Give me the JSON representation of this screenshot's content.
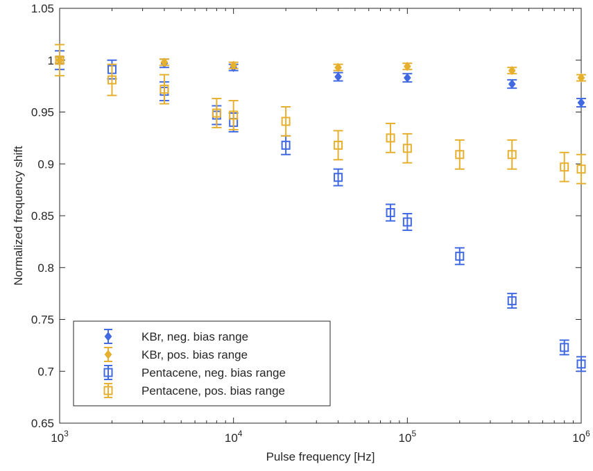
{
  "chart_data": {
    "type": "scatter",
    "xlabel": "Pulse frequency [Hz]",
    "ylabel": "Normalized frequency shift",
    "xscale": "log",
    "xlim": [
      1000,
      1000000
    ],
    "ylim": [
      0.65,
      1.05
    ],
    "x_ticks": [
      {
        "value": 1000,
        "base": "10",
        "exp": "3"
      },
      {
        "value": 10000,
        "base": "10",
        "exp": "4"
      },
      {
        "value": 100000,
        "base": "10",
        "exp": "5"
      },
      {
        "value": 1000000,
        "base": "10",
        "exp": "6"
      }
    ],
    "y_ticks": [
      {
        "value": 0.65,
        "label": "0.65"
      },
      {
        "value": 0.7,
        "label": "0.7"
      },
      {
        "value": 0.75,
        "label": "0.75"
      },
      {
        "value": 0.8,
        "label": "0.8"
      },
      {
        "value": 0.85,
        "label": "0.85"
      },
      {
        "value": 0.9,
        "label": "0.9"
      },
      {
        "value": 0.95,
        "label": "0.95"
      },
      {
        "value": 1.0,
        "label": "1"
      },
      {
        "value": 1.05,
        "label": "1.05"
      }
    ],
    "grid": false,
    "legend_position": "bottom-left",
    "series": [
      {
        "name": "KBr, neg. bias range",
        "marker": "diamond",
        "filled": true,
        "color": "#4169E1",
        "points": [
          {
            "x": 1000,
            "y": 1.0,
            "err": 0.003
          },
          {
            "x": 4000,
            "y": 0.997,
            "err": 0.004
          },
          {
            "x": 10000,
            "y": 0.993,
            "err": 0.003
          },
          {
            "x": 40000,
            "y": 0.984,
            "err": 0.004
          },
          {
            "x": 100000,
            "y": 0.983,
            "err": 0.004
          },
          {
            "x": 400000,
            "y": 0.977,
            "err": 0.004
          },
          {
            "x": 1000000,
            "y": 0.959,
            "err": 0.004
          }
        ]
      },
      {
        "name": "KBr, pos. bias range",
        "marker": "diamond",
        "filled": true,
        "color": "#E6B02E",
        "points": [
          {
            "x": 1000,
            "y": 1.0,
            "err": 0.003
          },
          {
            "x": 4000,
            "y": 0.998,
            "err": 0.003
          },
          {
            "x": 10000,
            "y": 0.995,
            "err": 0.003
          },
          {
            "x": 40000,
            "y": 0.993,
            "err": 0.003
          },
          {
            "x": 100000,
            "y": 0.994,
            "err": 0.003
          },
          {
            "x": 400000,
            "y": 0.99,
            "err": 0.003
          },
          {
            "x": 1000000,
            "y": 0.983,
            "err": 0.003
          }
        ]
      },
      {
        "name": "Pentacene, neg. bias range",
        "marker": "square",
        "filled": false,
        "color": "#4169E1",
        "points": [
          {
            "x": 1000,
            "y": 1.0,
            "err": 0.009
          },
          {
            "x": 2000,
            "y": 0.991,
            "err": 0.009
          },
          {
            "x": 4000,
            "y": 0.97,
            "err": 0.009
          },
          {
            "x": 8000,
            "y": 0.947,
            "err": 0.009
          },
          {
            "x": 10000,
            "y": 0.94,
            "err": 0.009
          },
          {
            "x": 20000,
            "y": 0.918,
            "err": 0.009
          },
          {
            "x": 40000,
            "y": 0.887,
            "err": 0.008
          },
          {
            "x": 80000,
            "y": 0.853,
            "err": 0.008
          },
          {
            "x": 100000,
            "y": 0.844,
            "err": 0.008
          },
          {
            "x": 200000,
            "y": 0.811,
            "err": 0.008
          },
          {
            "x": 400000,
            "y": 0.768,
            "err": 0.007
          },
          {
            "x": 800000,
            "y": 0.723,
            "err": 0.007
          },
          {
            "x": 1000000,
            "y": 0.707,
            "err": 0.007
          }
        ]
      },
      {
        "name": "Pentacene, pos. bias range",
        "marker": "square",
        "filled": false,
        "color": "#E6B02E",
        "points": [
          {
            "x": 1000,
            "y": 1.0,
            "err": 0.015
          },
          {
            "x": 2000,
            "y": 0.981,
            "err": 0.015
          },
          {
            "x": 4000,
            "y": 0.972,
            "err": 0.014
          },
          {
            "x": 8000,
            "y": 0.949,
            "err": 0.014
          },
          {
            "x": 10000,
            "y": 0.947,
            "err": 0.014
          },
          {
            "x": 20000,
            "y": 0.941,
            "err": 0.014
          },
          {
            "x": 40000,
            "y": 0.918,
            "err": 0.014
          },
          {
            "x": 80000,
            "y": 0.925,
            "err": 0.014
          },
          {
            "x": 100000,
            "y": 0.915,
            "err": 0.014
          },
          {
            "x": 200000,
            "y": 0.909,
            "err": 0.014
          },
          {
            "x": 400000,
            "y": 0.909,
            "err": 0.014
          },
          {
            "x": 800000,
            "y": 0.897,
            "err": 0.014
          },
          {
            "x": 1000000,
            "y": 0.895,
            "err": 0.014
          }
        ]
      }
    ]
  }
}
